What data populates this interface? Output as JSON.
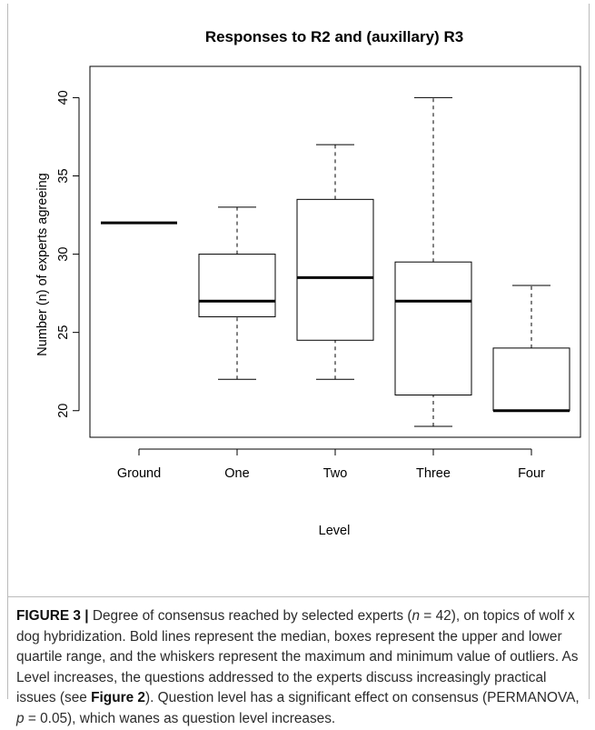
{
  "chart_data": {
    "type": "box",
    "title": "Responses to R2 and (auxillary) R3",
    "xlabel": "Level",
    "ylabel": "Number (n) of experts agreeing",
    "ylim": [
      18.3,
      42.0
    ],
    "yticks": [
      20,
      25,
      30,
      35,
      40
    ],
    "categories": [
      "Ground",
      "One",
      "Two",
      "Three",
      "Four"
    ],
    "boxes": [
      {
        "category": "Ground",
        "min": 32,
        "q1": 32,
        "median": 32,
        "q3": 32,
        "max": 32
      },
      {
        "category": "One",
        "min": 22,
        "q1": 26,
        "median": 27,
        "q3": 30,
        "max": 33
      },
      {
        "category": "Two",
        "min": 22,
        "q1": 24.5,
        "median": 28.5,
        "q3": 33.5,
        "max": 37
      },
      {
        "category": "Three",
        "min": 19,
        "q1": 21,
        "median": 27,
        "q3": 29.5,
        "max": 40
      },
      {
        "category": "Four",
        "min": 20,
        "q1": 20,
        "median": 20,
        "q3": 24,
        "max": 28
      }
    ],
    "grid": false,
    "legend": "none"
  },
  "caption": {
    "label": "FIGURE 3 |",
    "t1": " Degree of consensus reached by selected experts (",
    "n_var": "n",
    "t2": " = 42), on topics of wolf x dog hybridization. Bold lines represent the median, boxes represent the upper and lower quartile range, and the whiskers represent the maximum and minimum value of outliers. As Level increases, the questions addressed to the experts discuss increasingly practical issues (see ",
    "ref": "Figure 2",
    "t3": "). Question level has a significant effect on consensus (PERMANOVA, ",
    "p_var": "p",
    "t4": " = 0.05), which wanes as question level increases."
  }
}
